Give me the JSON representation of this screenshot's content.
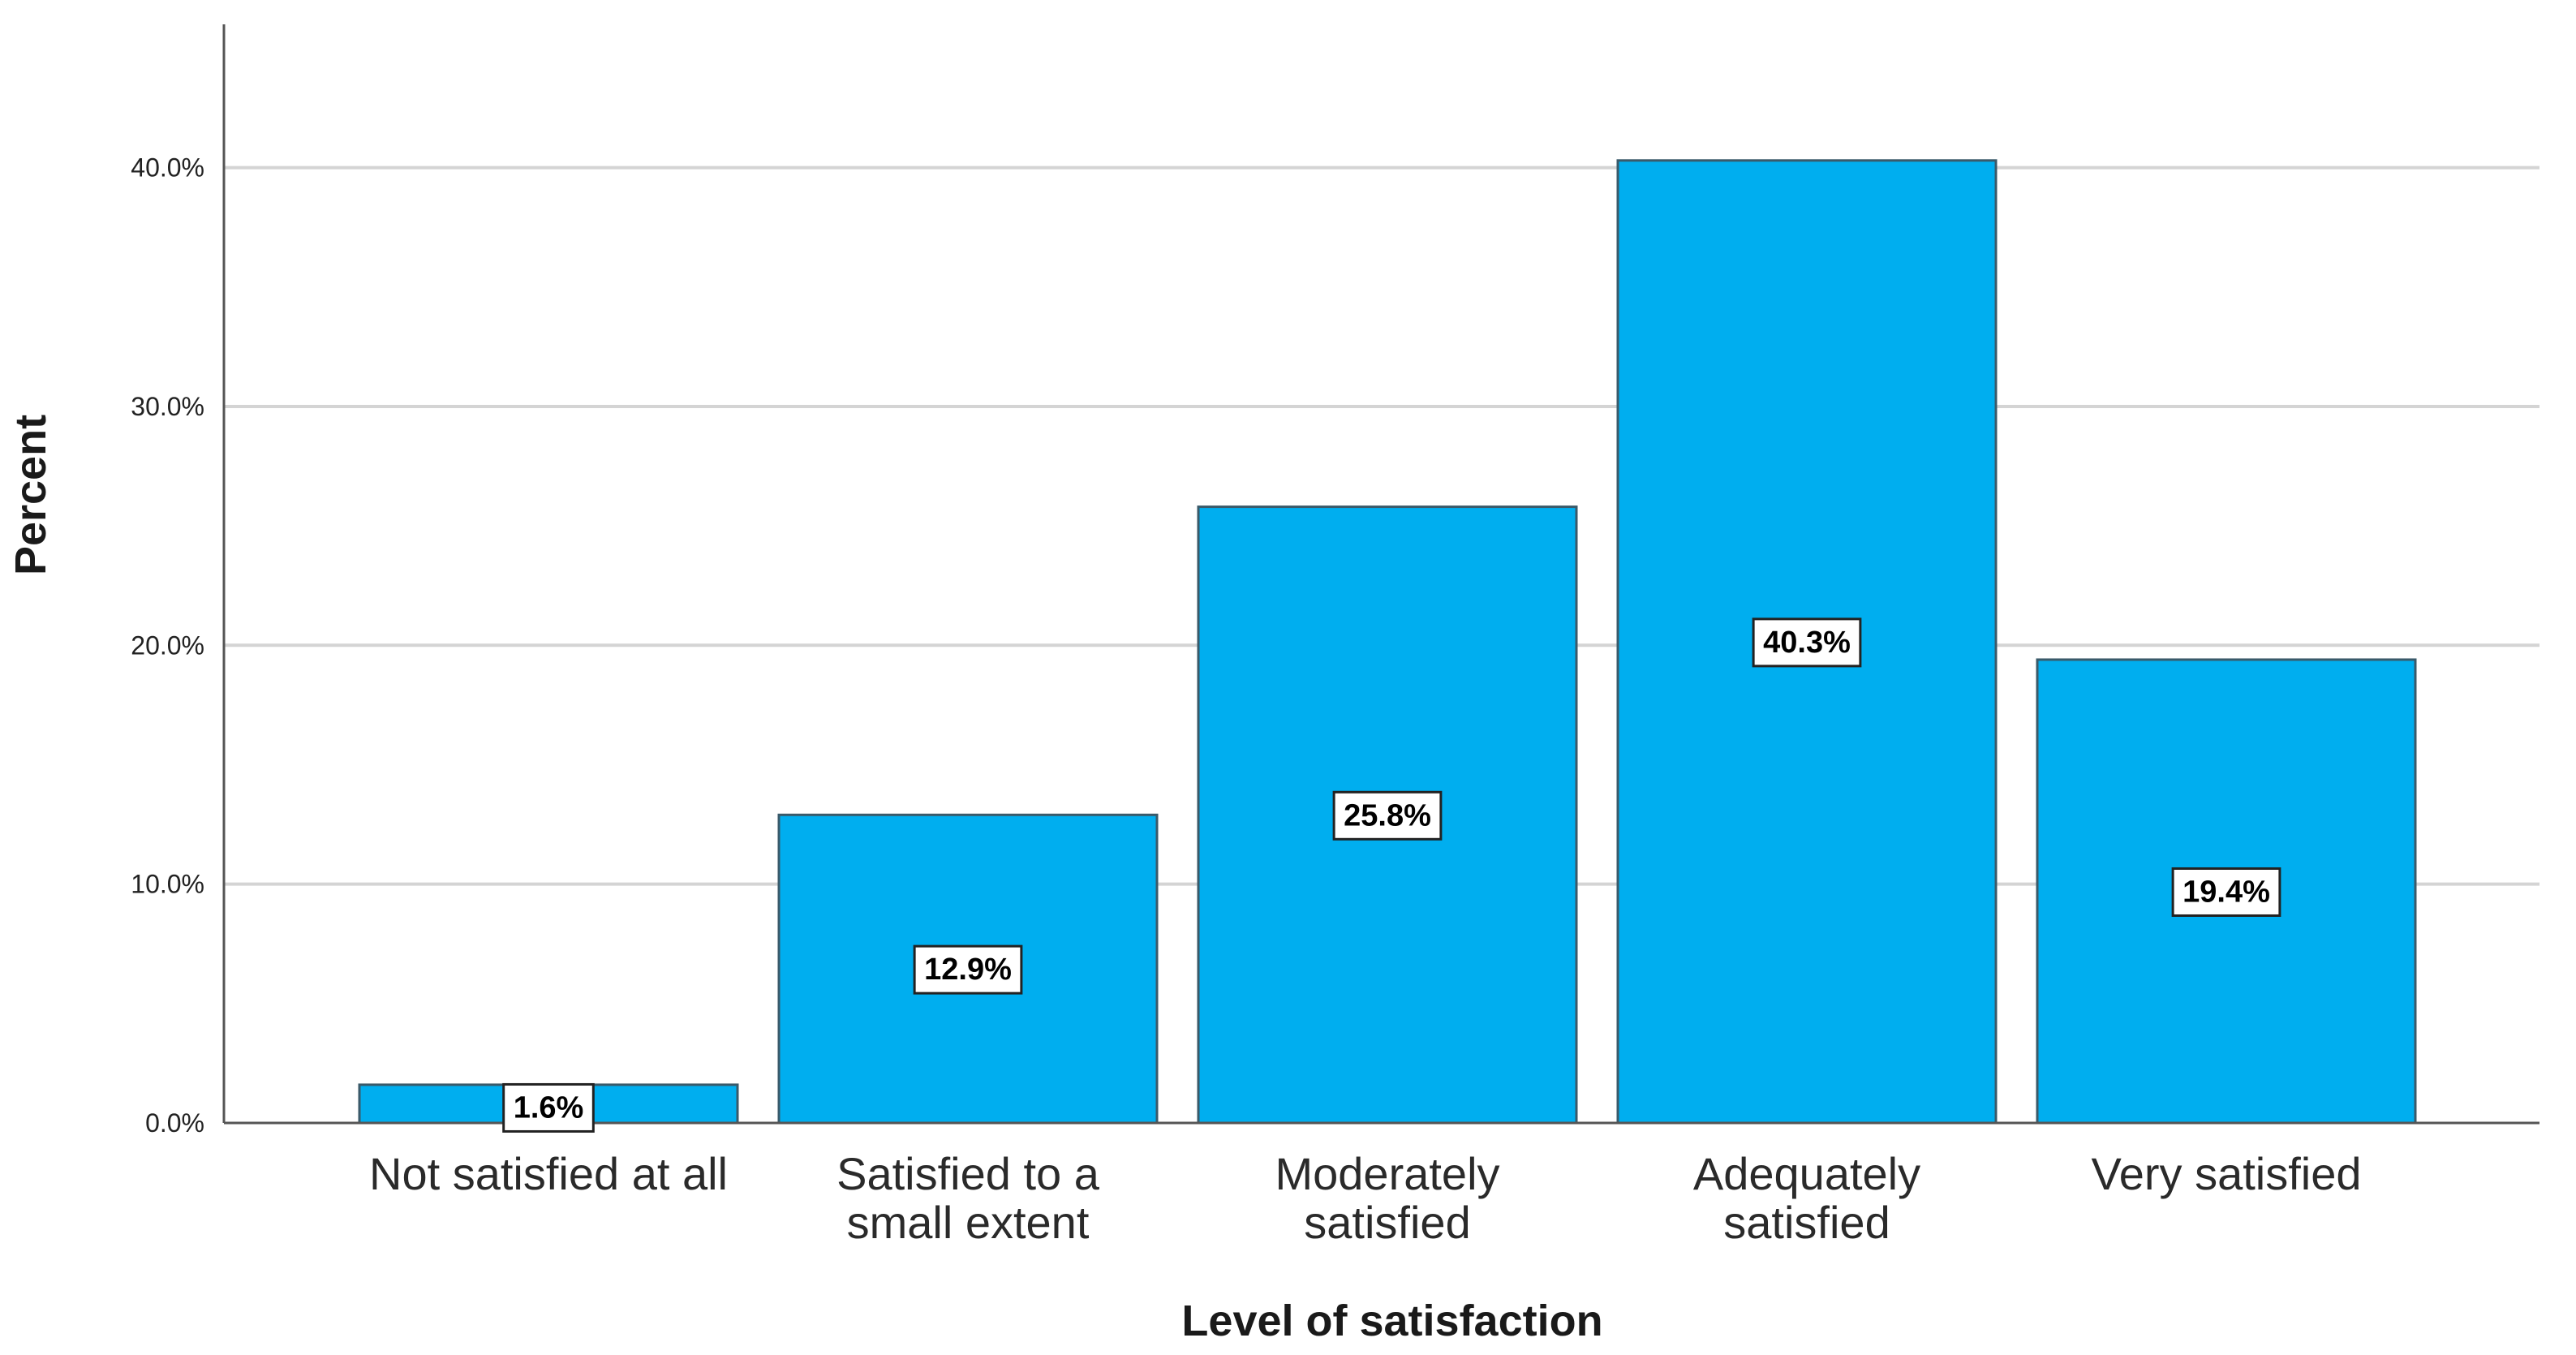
{
  "chart_data": {
    "type": "bar",
    "title": "",
    "xlabel": "Level of satisfaction",
    "ylabel": "Percent",
    "categories": [
      [
        "Not satisfied at all"
      ],
      [
        "Satisfied to a",
        "small extent"
      ],
      [
        "Moderately",
        "satisfied"
      ],
      [
        "Adequately",
        "satisfied"
      ],
      [
        "Very satisfied"
      ]
    ],
    "values": [
      1.6,
      12.9,
      25.8,
      40.3,
      19.4
    ],
    "data_labels": [
      "1.6%",
      "12.9%",
      "25.8%",
      "40.3%",
      "19.4%"
    ],
    "yticks": [
      0,
      10,
      20,
      30,
      40
    ],
    "ytick_labels": [
      "0.0%",
      "10.0%",
      "20.0%",
      "30.0%",
      "40.0%"
    ],
    "ylim": [
      0,
      46
    ],
    "grid": true,
    "colors": {
      "bar_fill": "#00AEEF",
      "bar_stroke": "#3a5a6a",
      "grid": "#d4d4d4",
      "axis": "#555555",
      "label_box": "#ffffff"
    }
  }
}
